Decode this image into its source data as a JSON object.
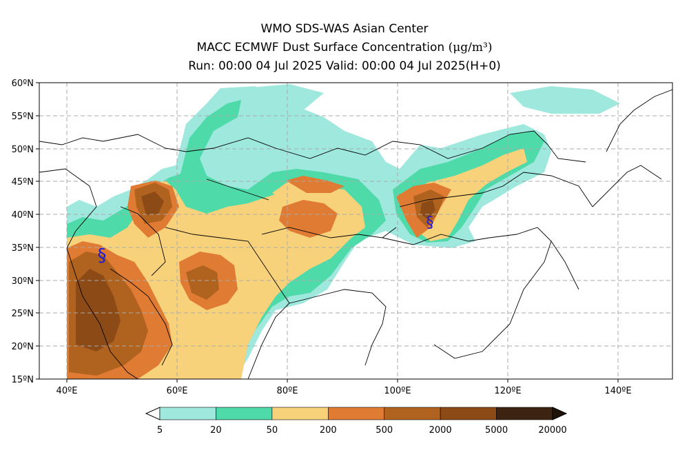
{
  "header": {
    "line1": "WMO SDS-WAS Asian Center",
    "line2_main": "MACC ECMWF Dust Surface Concentration",
    "line2_unit": "(μg/m³)",
    "line3": "Run: 00:00 04 Jul 2025    Valid: 00:00 04 Jul 2025(H+0)"
  },
  "map": {
    "lat_labels": [
      "60ºN",
      "55ºN",
      "50ºN",
      "45ºN",
      "40ºN",
      "35ºN",
      "30ºN",
      "25ºN",
      "20ºN",
      "15ºN"
    ],
    "lon_labels": [
      "40ºE",
      "60ºE",
      "80ºE",
      "100ºE",
      "120ºE",
      "140ºE"
    ],
    "lat_range": [
      15,
      60
    ],
    "lon_range": [
      35,
      150
    ],
    "grid": true,
    "markers": [
      {
        "symbol": "§",
        "name": "station-iraq"
      },
      {
        "symbol": "§",
        "name": "station-china"
      }
    ]
  },
  "legend": {
    "breaks": [
      "5",
      "20",
      "50",
      "200",
      "500",
      "2000",
      "5000",
      "20000"
    ],
    "colors": [
      "#9ee8de",
      "#4fdaaa",
      "#f8d27a",
      "#e07b34",
      "#b0621f",
      "#8b4a16",
      "#3d2311"
    ]
  }
}
